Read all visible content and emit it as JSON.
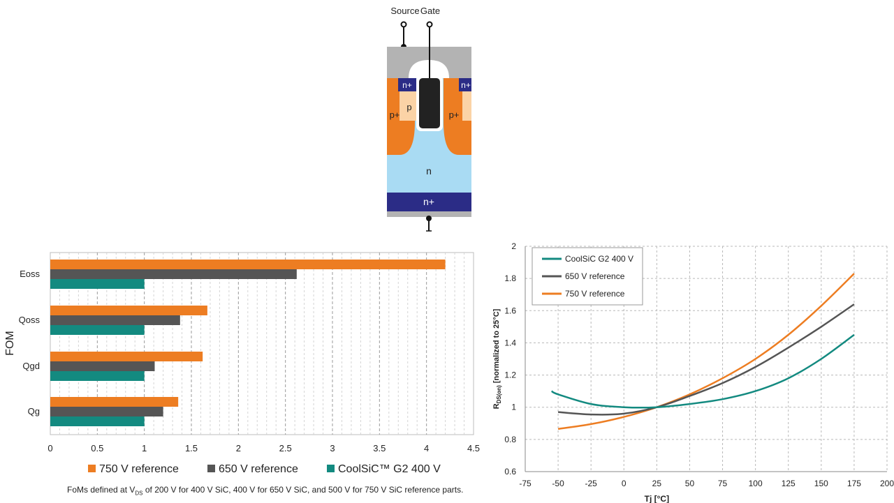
{
  "diagram": {
    "source_label": "Source",
    "gate_label": "Gate",
    "regions": {
      "n_plus_left": "n+",
      "n_plus_right": "n+",
      "p": "p",
      "p_plus_left": "p+",
      "p_plus_right": "p+",
      "n_drift": "n",
      "n_plus_substrate": "n+"
    }
  },
  "footnote": {
    "prefix": "FoMs defined at V",
    "sub": "DS",
    "suffix": " of 200 V for 400 V SiC, 400 V for 650 V SiC, and 500 V for 750 V SiC reference parts."
  },
  "chart_data": [
    {
      "type": "bar",
      "orientation": "horizontal",
      "ylabel": "FOM",
      "xlabel": "",
      "categories": [
        "Eoss",
        "Qoss",
        "Qgd",
        "Qg"
      ],
      "xlim": [
        0,
        4.5
      ],
      "xticks": [
        "0",
        "0.5",
        "1",
        "1.5",
        "2",
        "2.5",
        "3",
        "3.5",
        "4",
        "4.5"
      ],
      "grid": "vertical dashed",
      "legend_position": "bottom",
      "series": [
        {
          "name": "750 V reference",
          "color": "#ed7d22",
          "values": [
            4.2,
            1.67,
            1.62,
            1.36
          ]
        },
        {
          "name": "650 V reference",
          "color": "#555555",
          "values": [
            2.62,
            1.38,
            1.11,
            1.2
          ]
        },
        {
          "name": "CoolSiC™ G2 400 V",
          "color": "#138a80",
          "values": [
            1.0,
            1.0,
            1.0,
            1.0
          ]
        }
      ]
    },
    {
      "type": "line",
      "xlabel": "Tj [°C]",
      "ylabel_main": "R",
      "ylabel_sub": "DS(on)",
      "ylabel_rest": " [normalized to 25°C]",
      "xlim": [
        -75,
        200
      ],
      "ylim": [
        0.6,
        2
      ],
      "xticks": [
        "-75",
        "-50",
        "-25",
        "0",
        "25",
        "50",
        "75",
        "100",
        "125",
        "150",
        "175",
        "200"
      ],
      "yticks": [
        "0.6",
        "0.8",
        "1",
        "1.2",
        "1.4",
        "1.6",
        "1.8",
        "2"
      ],
      "grid": "dashed",
      "legend_position": "top-left",
      "x": [
        -55,
        -50,
        -25,
        0,
        25,
        50,
        75,
        100,
        125,
        150,
        175
      ],
      "series": [
        {
          "name": "CoolSiC G2 400 V",
          "color": "#138a80",
          "values": [
            1.1,
            1.08,
            1.02,
            1.0,
            1.0,
            1.02,
            1.05,
            1.1,
            1.18,
            1.3,
            1.45
          ]
        },
        {
          "name": "650 V reference",
          "color": "#555555",
          "values": [
            null,
            0.97,
            0.955,
            0.96,
            1.0,
            1.07,
            1.15,
            1.25,
            1.37,
            1.5,
            1.64
          ]
        },
        {
          "name": "750 V reference",
          "color": "#ed7d22",
          "values": [
            null,
            0.865,
            0.895,
            0.94,
            1.0,
            1.08,
            1.18,
            1.3,
            1.45,
            1.63,
            1.83
          ]
        }
      ]
    }
  ]
}
